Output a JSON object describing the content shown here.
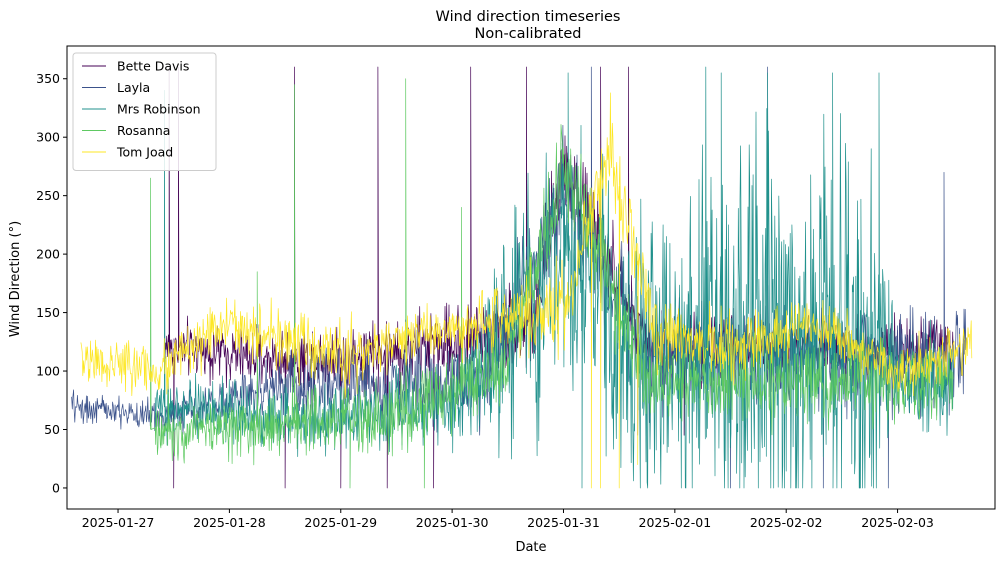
{
  "chart_data": {
    "type": "line",
    "title": "Wind direction timeseries",
    "subtitle": "Non-calibrated",
    "xlabel": "Date",
    "ylabel": "Wind Direction (°)",
    "x_ticks": [
      "2025-01-27",
      "2025-01-28",
      "2025-01-29",
      "2025-01-30",
      "2025-01-31",
      "2025-02-01",
      "2025-02-02",
      "2025-02-03"
    ],
    "y_ticks": [
      0,
      50,
      100,
      150,
      200,
      250,
      300,
      350
    ],
    "xlim": [
      "2025-01-26 13:00",
      "2025-02-03 21:00"
    ],
    "ylim": [
      -18,
      378
    ],
    "legend_position": "top-left",
    "series": [
      {
        "name": "Bette Davis",
        "color": "#440154",
        "start": "2025-01-27 10:00",
        "end": "2025-02-03 12:00",
        "segments": [
          [
            "2025-01-27 10:00",
            120,
            20
          ],
          [
            "2025-01-28 12:00",
            110,
            22
          ],
          [
            "2025-01-29 06:00",
            112,
            28
          ],
          [
            "2025-01-30 06:00",
            130,
            30
          ],
          [
            "2025-01-30 18:00",
            140,
            35
          ],
          [
            "2025-01-31 00:00",
            280,
            40
          ],
          [
            "2025-01-31 18:00",
            120,
            25
          ],
          [
            "2025-02-03 12:00",
            120,
            25
          ]
        ],
        "spikes": [
          [
            "2025-01-27 11:00",
            360
          ],
          [
            "2025-01-27 12:00",
            0
          ],
          [
            "2025-01-27 13:00",
            360
          ],
          [
            "2025-01-28 12:00",
            0
          ],
          [
            "2025-01-28 14:00",
            360
          ],
          [
            "2025-01-29 00:00",
            0
          ],
          [
            "2025-01-29 08:00",
            360
          ],
          [
            "2025-01-29 10:00",
            0
          ],
          [
            "2025-01-29 20:00",
            0
          ],
          [
            "2025-01-30 04:00",
            360
          ],
          [
            "2025-01-30 16:00",
            360
          ],
          [
            "2025-01-31 08:00",
            360
          ],
          [
            "2025-01-31 14:00",
            360
          ],
          [
            "2025-01-31 16:00",
            45
          ],
          [
            "2025-02-01 02:00",
            45
          ]
        ]
      },
      {
        "name": "Layla",
        "color": "#3b528b",
        "start": "2025-01-26 14:00",
        "end": "2025-02-03 15:00",
        "segments": [
          [
            "2025-01-26 14:00",
            70,
            12
          ],
          [
            "2025-01-27 10:00",
            60,
            12
          ],
          [
            "2025-01-28 12:00",
            90,
            25
          ],
          [
            "2025-01-30 06:00",
            90,
            35
          ],
          [
            "2025-01-31 00:00",
            250,
            40
          ],
          [
            "2025-01-31 18:00",
            110,
            40
          ],
          [
            "2025-02-03 15:00",
            110,
            40
          ]
        ],
        "spikes": [
          [
            "2025-01-31 06:00",
            360
          ],
          [
            "2025-02-01 12:00",
            0
          ],
          [
            "2025-02-01 20:00",
            360
          ],
          [
            "2025-02-02 08:00",
            0
          ],
          [
            "2025-02-02 22:00",
            0
          ],
          [
            "2025-02-03 10:00",
            270
          ]
        ]
      },
      {
        "name": "Mrs Robinson",
        "color": "#21918c",
        "start": "2025-01-27 08:00",
        "end": "2025-02-03 12:00",
        "segments": [
          [
            "2025-01-27 08:00",
            70,
            20
          ],
          [
            "2025-01-28 12:00",
            60,
            25
          ],
          [
            "2025-01-30 00:00",
            70,
            30
          ],
          [
            "2025-01-31 00:00",
            200,
            120
          ],
          [
            "2025-01-31 18:00",
            100,
            100
          ],
          [
            "2025-02-01 10:00",
            120,
            150
          ],
          [
            "2025-02-02 18:00",
            120,
            160
          ],
          [
            "2025-02-03 00:00",
            90,
            40
          ],
          [
            "2025-02-03 12:00",
            90,
            40
          ]
        ],
        "spikes": [
          [
            "2025-01-27 10:00",
            340
          ],
          [
            "2025-01-31 01:00",
            355
          ],
          [
            "2025-01-31 04:00",
            0
          ],
          [
            "2025-02-01 10:00",
            355
          ],
          [
            "2025-02-01 14:00",
            0
          ],
          [
            "2025-02-01 20:00",
            355
          ],
          [
            "2025-02-02 02:00",
            0
          ],
          [
            "2025-02-02 10:00",
            355
          ],
          [
            "2025-02-02 16:00",
            0
          ],
          [
            "2025-02-02 20:00",
            355
          ]
        ]
      },
      {
        "name": "Rosanna",
        "color": "#5ec962",
        "start": "2025-01-27 08:00",
        "end": "2025-02-03 12:00",
        "segments": [
          [
            "2025-01-27 08:00",
            50,
            20
          ],
          [
            "2025-01-28 12:00",
            55,
            25
          ],
          [
            "2025-01-29 12:00",
            60,
            30
          ],
          [
            "2025-01-30 12:00",
            100,
            30
          ],
          [
            "2025-01-31 00:00",
            280,
            40
          ],
          [
            "2025-01-31 18:00",
            90,
            30
          ],
          [
            "2025-02-03 12:00",
            90,
            30
          ]
        ],
        "spikes": [
          [
            "2025-01-27 07:00",
            265
          ],
          [
            "2025-01-28 06:00",
            185
          ],
          [
            "2025-01-28 14:00",
            345
          ],
          [
            "2025-01-29 02:00",
            0
          ],
          [
            "2025-01-29 14:00",
            350
          ],
          [
            "2025-01-29 18:00",
            0
          ],
          [
            "2025-01-30 02:00",
            240
          ],
          [
            "2025-01-30 16:00",
            195
          ]
        ]
      },
      {
        "name": "Tom Joad",
        "color": "#fde725",
        "start": "2025-01-26 16:00",
        "end": "2025-02-03 16:00",
        "segments": [
          [
            "2025-01-26 16:00",
            110,
            20
          ],
          [
            "2025-01-27 08:00",
            100,
            20
          ],
          [
            "2025-01-28 00:00",
            140,
            20
          ],
          [
            "2025-01-29 00:00",
            110,
            25
          ],
          [
            "2025-01-30 00:00",
            140,
            20
          ],
          [
            "2025-01-31 00:00",
            150,
            40
          ],
          [
            "2025-01-31 10:00",
            290,
            35
          ],
          [
            "2025-01-31 20:00",
            130,
            30
          ],
          [
            "2025-02-01 12:00",
            120,
            25
          ],
          [
            "2025-02-02 06:00",
            140,
            20
          ],
          [
            "2025-02-03 00:00",
            100,
            20
          ],
          [
            "2025-02-03 16:00",
            120,
            20
          ]
        ],
        "spikes": [
          [
            "2025-01-31 06:00",
            0
          ],
          [
            "2025-01-31 08:00",
            0
          ],
          [
            "2025-01-31 12:00",
            0
          ],
          [
            "2025-01-31 16:00",
            20
          ]
        ]
      }
    ]
  }
}
